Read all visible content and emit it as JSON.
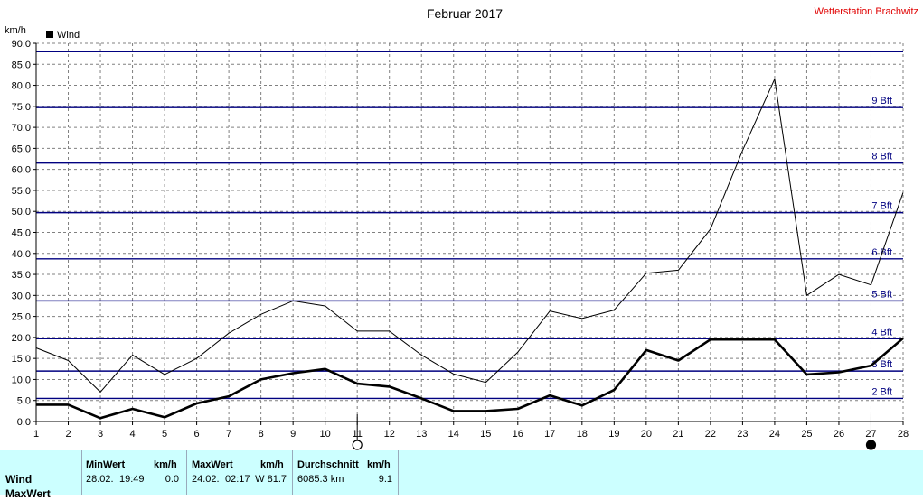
{
  "station": "Wetterstation Brachwitz",
  "chart_data": {
    "type": "line",
    "title": "Februar 2017",
    "ylabel": "km/h",
    "ylim": [
      0,
      90
    ],
    "yticks": [
      "0.0",
      "5.0",
      "10.0",
      "15.0",
      "20.0",
      "25.0",
      "30.0",
      "35.0",
      "40.0",
      "45.0",
      "50.0",
      "55.0",
      "60.0",
      "65.0",
      "70.0",
      "75.0",
      "80.0",
      "85.0",
      "90.0"
    ],
    "x": [
      "1",
      "2",
      "3",
      "4",
      "5",
      "6",
      "7",
      "8",
      "9",
      "10",
      "11",
      "12",
      "13",
      "14",
      "15",
      "16",
      "17",
      "18",
      "19",
      "20",
      "21",
      "22",
      "23",
      "24",
      "25",
      "26",
      "27",
      "28"
    ],
    "grid": true,
    "legend": "top-left",
    "series": [
      {
        "name": "Wind",
        "style": "bold",
        "color": "#000000",
        "values": [
          4.0,
          4.0,
          0.8,
          3.0,
          1.0,
          4.3,
          6.0,
          10.0,
          11.5,
          12.5,
          9.0,
          8.3,
          5.5,
          2.5,
          2.5,
          3.0,
          6.2,
          3.8,
          7.5,
          17.0,
          14.5,
          19.5,
          19.5,
          19.5,
          11.2,
          11.7,
          13.3,
          19.8
        ]
      },
      {
        "style": "thin",
        "color": "#000000",
        "values": [
          17.5,
          14.5,
          7.0,
          15.8,
          11.2,
          15.0,
          21.0,
          25.5,
          28.7,
          27.5,
          21.5,
          21.5,
          15.8,
          11.3,
          9.3,
          16.5,
          26.3,
          24.5,
          26.5,
          35.3,
          36.0,
          45.8,
          64.5,
          81.5,
          30.0,
          35.0,
          32.5,
          54.5
        ]
      }
    ],
    "beaufort": [
      {
        "label": "2 Bft",
        "value": 5.5
      },
      {
        "label": "3 Bft",
        "value": 12.0
      },
      {
        "label": "4 Bft",
        "value": 19.7
      },
      {
        "label": "5 Bft",
        "value": 28.7
      },
      {
        "label": "6 Bft",
        "value": 38.7
      },
      {
        "label": "7 Bft",
        "value": 49.7
      },
      {
        "label": "8 Bft",
        "value": 61.5
      },
      {
        "label": "9 Bft",
        "value": 74.7
      },
      {
        "label": "",
        "value": 88.0
      }
    ],
    "moon_phases": [
      {
        "day": 11,
        "phase": "full"
      },
      {
        "day": 27,
        "phase": "new"
      }
    ]
  },
  "stats": {
    "row_label": "Wind",
    "row_label_next": "MaxWert",
    "min_header": "MinWert",
    "min_unit": "km/h",
    "min_date": "28.02.",
    "min_time": "19:49",
    "min_value": "0.0",
    "max_header": "MaxWert",
    "max_unit": "km/h",
    "max_date": "24.02.",
    "max_time": "02:17",
    "max_value": "W 81.7",
    "avg_header": "Durchschnitt",
    "avg_unit": "km/h",
    "avg_distance": "6085.3 km",
    "avg_value": "9.1"
  }
}
